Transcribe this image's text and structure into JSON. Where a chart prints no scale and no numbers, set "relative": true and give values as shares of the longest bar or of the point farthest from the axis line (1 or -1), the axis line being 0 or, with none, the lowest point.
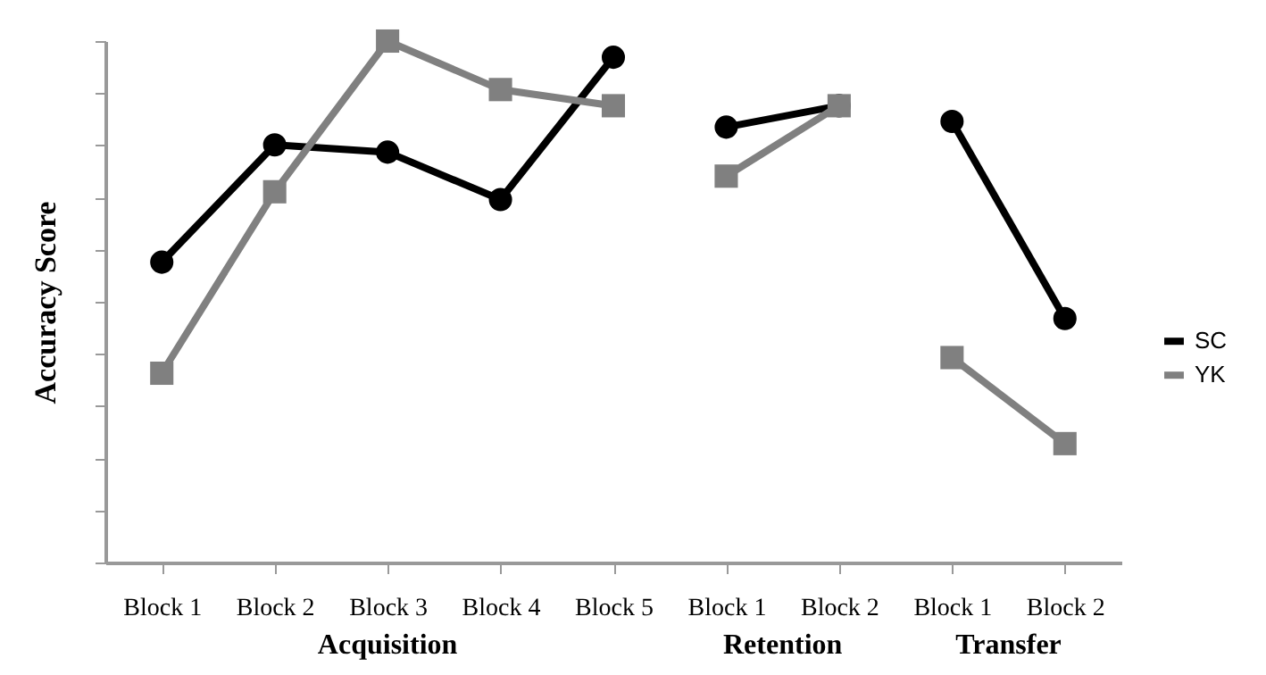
{
  "chart_data": {
    "type": "line",
    "ylabel": "Accuracy Score",
    "relative": true,
    "legend": "right",
    "categories": [
      "Block 1",
      "Block 2",
      "Block 3",
      "Block 4",
      "Block 5",
      "Block 1",
      "Block 2",
      "Block 1",
      "Block 2"
    ],
    "annotations": [
      "Acquisition",
      "Retention",
      "Transfer"
    ],
    "series": [
      {
        "name": "SC",
        "color": "#000000",
        "marker": "circle",
        "values": [
          0.576,
          0.801,
          0.787,
          0.696,
          0.969,
          null,
          null,
          null,
          null
        ]
      },
      {
        "color": "#000000",
        "marker": "circle",
        "values": [
          null,
          null,
          null,
          null,
          null,
          0.835,
          0.876,
          null,
          null
        ]
      },
      {
        "color": "#000000",
        "marker": "circle",
        "values": [
          null,
          null,
          null,
          null,
          null,
          null,
          null,
          0.846,
          0.468
        ]
      },
      {
        "name": "YK",
        "color": "#808080",
        "marker": "square",
        "values": [
          0.363,
          0.711,
          1,
          0.907,
          0.876,
          null,
          null,
          null,
          null
        ]
      },
      {
        "color": "#808080",
        "marker": "square",
        "values": [
          null,
          null,
          null,
          null,
          null,
          0.741,
          0.876,
          null,
          null
        ]
      },
      {
        "color": "#808080",
        "marker": "square",
        "values": [
          null,
          null,
          null,
          null,
          null,
          null,
          null,
          0.393,
          0.228
        ]
      }
    ]
  }
}
